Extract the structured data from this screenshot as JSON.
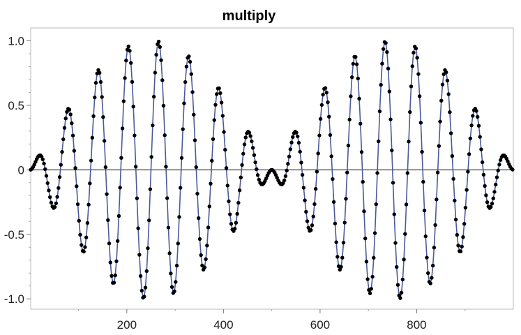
{
  "chart_data": {
    "type": "scatter",
    "title": "multiply",
    "xlabel": "",
    "ylabel": "",
    "xlim": [
      1,
      1000
    ],
    "ylim": [
      -1.08,
      1.1
    ],
    "xticks": [
      200,
      400,
      600,
      800
    ],
    "xtick_labels": [
      "200",
      "400",
      "600",
      "800"
    ],
    "yticks": [
      1.0,
      0.5,
      0,
      -0.5,
      -1.0
    ],
    "ytick_labels": [
      "1.0",
      "0.5",
      "0",
      "-0.5",
      "-1.0"
    ],
    "zero_line": true,
    "grid": false,
    "legend": "none",
    "series": [
      {
        "line_color": "#4a5a9a",
        "marker_color": "#000000",
        "generator": "y = sin(2*pi*x/62.5) * sin(2*pi*x/1000) for x = 1..1000 step 2.5",
        "x_start": 1,
        "x_end": 1000,
        "x_step": 2.5,
        "carrier_period": 62.5,
        "envelope_period": 1000
      }
    ],
    "colors": {
      "accent": "#4a5a9a",
      "markers": "#000000"
    }
  }
}
